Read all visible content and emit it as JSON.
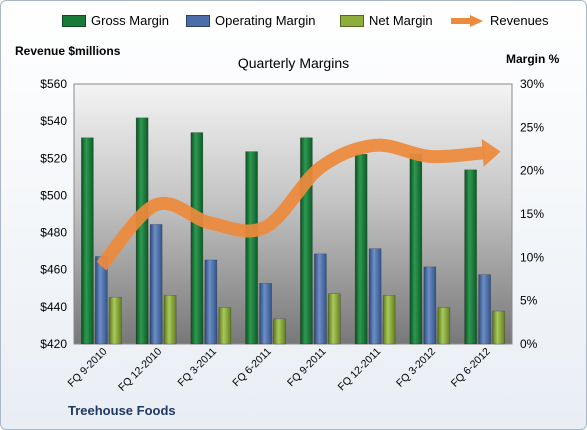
{
  "colors": {
    "gross": "#1a7a3a",
    "operating": "#4a6ea9",
    "net": "#8cac3c",
    "revenues": "#ed8a3c"
  },
  "legend": {
    "gross": "Gross Margin",
    "operating": "Operating Margin",
    "net": "Net Margin",
    "revenues": "Revenues"
  },
  "footer": "Treehouse Foods",
  "chart_data": {
    "type": "bar",
    "title": "Quarterly Margins",
    "ylabel_left": "Revenue $millions",
    "ylabel_right": "Margin %",
    "categories": [
      "FQ 9-2010",
      "FQ 12-2010",
      "FQ 3-2011",
      "FQ 6-2011",
      "FQ 9-2011",
      "FQ 12-2011",
      "FQ 3-2012",
      "FQ 6-2012"
    ],
    "y_left": {
      "min": 420,
      "max": 560,
      "ticks": [
        "$420",
        "$440",
        "$460",
        "$480",
        "$500",
        "$520",
        "$540",
        "$560"
      ]
    },
    "y_right": {
      "min": 0,
      "max": 30,
      "ticks": [
        "0%",
        "5%",
        "10%",
        "15%",
        "20%",
        "25%",
        "30%"
      ]
    },
    "series": [
      {
        "name": "Gross Margin",
        "axis": "right",
        "values": [
          23.8,
          26.1,
          24.4,
          22.2,
          23.8,
          21.9,
          21.9,
          20.1
        ]
      },
      {
        "name": "Operating Margin",
        "axis": "right",
        "values": [
          10.1,
          13.8,
          9.7,
          7.0,
          10.4,
          11.0,
          8.9,
          8.0
        ]
      },
      {
        "name": "Net Margin",
        "axis": "right",
        "values": [
          5.4,
          5.6,
          4.2,
          2.9,
          5.8,
          5.6,
          4.2,
          3.8
        ]
      },
      {
        "name": "Revenues",
        "type": "line",
        "axis": "left",
        "values": [
          462,
          495,
          485,
          483,
          515,
          527,
          521,
          523
        ]
      }
    ],
    "grid": false,
    "legend_position": "top"
  }
}
